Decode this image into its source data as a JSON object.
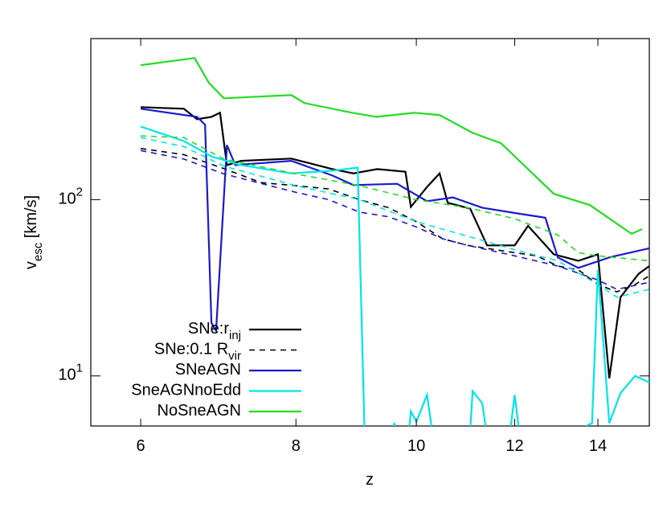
{
  "chart_data": {
    "type": "line",
    "xlabel": "z",
    "ylabel": "v_esc [km/s]",
    "xlog": true,
    "ylog": true,
    "xlim": [
      5.47,
      15.4
    ],
    "ylim": [
      5.2,
      820
    ],
    "xticks": [
      6,
      8,
      10,
      12,
      14
    ],
    "yticks": [
      {
        "value": 10,
        "label": "10^1"
      },
      {
        "value": 100,
        "label": "10^2"
      }
    ],
    "legend": "lower left",
    "series": [
      {
        "name": "SNe:r_inj",
        "color": "#000000",
        "dashed": false,
        "x": [
          6,
          6.5,
          6.66,
          6.84,
          6.95,
          7.04,
          7.23,
          7.93,
          8.56,
          8.9,
          9.3,
          9.8,
          9.9,
          10.2,
          10.44,
          10.6,
          11.05,
          11.4,
          12,
          12.3,
          12.9,
          13.5,
          14,
          14.3,
          14.6,
          15.1,
          15.4
        ],
        "values": [
          335,
          328,
          286,
          295,
          311,
          157,
          166,
          171,
          149,
          141,
          149,
          144,
          91,
          118,
          141,
          96,
          89,
          55,
          55,
          71,
          49,
          45,
          49,
          9.7,
          28,
          38,
          42
        ]
      },
      {
        "name": "SNe:0.1 R_vir",
        "color": "#000000",
        "dashed": true,
        "x": [
          6,
          6.5,
          7,
          7.5,
          8,
          8.5,
          9,
          9.5,
          10,
          10.5,
          11,
          12,
          12.5,
          13,
          13.5,
          14,
          14.5,
          15,
          15.4
        ],
        "values": [
          195,
          180,
          150,
          125,
          120,
          115,
          100,
          90,
          75,
          60,
          55,
          50,
          48,
          42,
          40,
          33,
          30,
          33,
          37
        ]
      },
      {
        "name": "SNeAGN",
        "color": "#1a1acc",
        "dashed": false,
        "x": [
          6,
          6.66,
          6.76,
          6.84,
          6.9,
          7.04,
          7.15,
          7.93,
          8.56,
          8.9,
          9.65,
          10.2,
          10.7,
          11.3,
          12,
          12.7,
          13,
          13.5,
          14.3,
          15.4
        ],
        "values": [
          328,
          295,
          266,
          20,
          18,
          204,
          157,
          166,
          137,
          121,
          123,
          98,
          103,
          90,
          84,
          79,
          47,
          41,
          47,
          53
        ]
      },
      {
        "color": "#1a1acc",
        "dashed": true,
        "x": [
          6,
          6.5,
          7,
          8,
          8.5,
          9,
          9.5,
          10,
          10.5,
          11,
          12,
          13,
          14,
          14.5,
          15.4
        ],
        "values": [
          190,
          170,
          140,
          110,
          100,
          85,
          80,
          70,
          60,
          55,
          48,
          42,
          35,
          31,
          34
        ]
      },
      {
        "name": "SneAGNnoEdd",
        "color": "#00e5ee",
        "dashed": false,
        "x": [
          6,
          6.5,
          6.85,
          7.23,
          7.93,
          8.56,
          8.97,
          9.1,
          9.5,
          9.6,
          9.8,
          9.9,
          10,
          10.2,
          10.4,
          11,
          11.1,
          11.3,
          11.5,
          11.8,
          12,
          12.2,
          13.5,
          13.7,
          13.85,
          14,
          14.3,
          14.6,
          15,
          15.4
        ],
        "values": [
          260,
          215,
          175,
          157,
          141,
          146,
          152,
          3,
          4,
          5.4,
          3,
          6.3,
          5.5,
          7.8,
          3,
          3,
          8.2,
          7,
          3,
          3,
          7.8,
          3,
          3,
          5.2,
          5.4,
          40,
          5.4,
          8,
          10,
          9.2
        ]
      },
      {
        "color": "#00e5ee",
        "dashed": true,
        "x": [
          6,
          6.5,
          7,
          8,
          9,
          10,
          11,
          12,
          13,
          14,
          14.5,
          15.4
        ],
        "values": [
          225,
          200,
          155,
          120,
          100,
          75,
          62,
          52,
          45,
          33,
          28,
          31
        ]
      },
      {
        "name": "NoSneAGN",
        "color": "#22dd22",
        "dashed": false,
        "x": [
          6,
          6.63,
          6.81,
          7,
          7.93,
          8.13,
          8.88,
          9.29,
          9.96,
          10.44,
          11.1,
          11.7,
          12.9,
          13.8,
          14.9,
          15.2
        ],
        "values": [
          579,
          636,
          459,
          376,
          392,
          353,
          311,
          295,
          311,
          302,
          239,
          209,
          108,
          93,
          64,
          68
        ]
      },
      {
        "color": "#22dd22",
        "dashed": true,
        "x": [
          6,
          6.5,
          7,
          8,
          9,
          10,
          11,
          12,
          13,
          13.5,
          14,
          15.4
        ],
        "values": [
          230,
          225,
          170,
          140,
          120,
          100,
          90,
          78,
          63,
          50,
          48,
          45
        ]
      }
    ]
  }
}
